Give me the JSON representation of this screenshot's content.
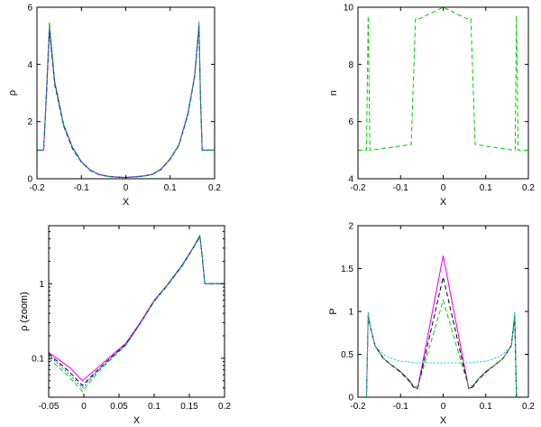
{
  "chart_data": [
    {
      "id": "rho",
      "type": "line",
      "xlabel": "X",
      "ylabel": "ρ",
      "xlim": [
        -0.2,
        0.2
      ],
      "ylim": [
        0,
        6
      ],
      "xticks": [
        -0.2,
        -0.1,
        0,
        0.1,
        0.2
      ],
      "yticks": [
        0,
        2,
        4,
        6
      ],
      "xtick_labels": [
        "-0.2",
        "-0.1",
        "0",
        "0.1",
        "0.2"
      ],
      "ytick_labels": [
        "0",
        "2",
        "4",
        "6"
      ],
      "series": [
        {
          "color": "#ff00ff",
          "dash": "solid",
          "x": [
            -0.2,
            -0.185,
            -0.178,
            -0.172,
            -0.16,
            -0.14,
            -0.12,
            -0.1,
            -0.08,
            -0.06,
            -0.04,
            -0.02,
            0,
            0.02,
            0.04,
            0.06,
            0.08,
            0.1,
            0.12,
            0.14,
            0.155,
            0.165,
            0.168,
            0.172,
            0.2
          ],
          "y": [
            1,
            1,
            3.2,
            5.3,
            3.4,
            1.9,
            1.1,
            0.6,
            0.3,
            0.15,
            0.09,
            0.06,
            0.05,
            0.07,
            0.1,
            0.16,
            0.35,
            0.7,
            1.2,
            2.3,
            3.6,
            5.4,
            3.0,
            1.0,
            1
          ]
        },
        {
          "color": "#000000",
          "dash": "dash",
          "x": [
            -0.2,
            -0.185,
            -0.178,
            -0.172,
            -0.16,
            -0.14,
            -0.12,
            -0.1,
            -0.08,
            -0.06,
            -0.04,
            -0.02,
            0,
            0.02,
            0.04,
            0.06,
            0.08,
            0.1,
            0.12,
            0.14,
            0.155,
            0.165,
            0.168,
            0.172,
            0.2
          ],
          "y": [
            1,
            1,
            3.1,
            5.2,
            3.3,
            1.85,
            1.05,
            0.58,
            0.29,
            0.14,
            0.08,
            0.055,
            0.045,
            0.065,
            0.09,
            0.15,
            0.33,
            0.68,
            1.18,
            2.25,
            3.55,
            5.3,
            2.9,
            1.0,
            1
          ]
        },
        {
          "color": "#00cc00",
          "dash": "dash",
          "x": [
            -0.2,
            -0.185,
            -0.178,
            -0.172,
            -0.16,
            -0.14,
            -0.12,
            -0.1,
            -0.08,
            -0.06,
            -0.04,
            -0.02,
            0,
            0.02,
            0.04,
            0.06,
            0.08,
            0.1,
            0.12,
            0.14,
            0.155,
            0.165,
            0.168,
            0.172,
            0.2
          ],
          "y": [
            1,
            1,
            3.3,
            5.5,
            3.4,
            1.9,
            1.1,
            0.6,
            0.3,
            0.14,
            0.08,
            0.05,
            0.04,
            0.06,
            0.09,
            0.15,
            0.34,
            0.7,
            1.2,
            2.3,
            3.6,
            5.5,
            3.0,
            1.0,
            1
          ]
        },
        {
          "color": "#0066ff",
          "dash": "dot",
          "x": [
            -0.2,
            -0.185,
            -0.178,
            -0.172,
            -0.16,
            -0.14,
            -0.12,
            -0.1,
            -0.08,
            -0.06,
            -0.04,
            -0.02,
            0,
            0.02,
            0.04,
            0.06,
            0.08,
            0.1,
            0.12,
            0.14,
            0.155,
            0.165,
            0.168,
            0.172,
            0.2
          ],
          "y": [
            1,
            1,
            3.2,
            5.3,
            3.35,
            1.88,
            1.08,
            0.59,
            0.3,
            0.145,
            0.085,
            0.055,
            0.045,
            0.065,
            0.095,
            0.155,
            0.34,
            0.69,
            1.19,
            2.28,
            3.58,
            5.35,
            2.95,
            1.0,
            1
          ]
        }
      ]
    },
    {
      "id": "n",
      "type": "line",
      "xlabel": "X",
      "ylabel": "n",
      "xlim": [
        -0.2,
        0.2
      ],
      "ylim": [
        4,
        10
      ],
      "xticks": [
        -0.2,
        -0.1,
        0,
        0.1,
        0.2
      ],
      "yticks": [
        4,
        6,
        8,
        10
      ],
      "xtick_labels": [
        "-0.2",
        "-0.1",
        "0",
        "0.1",
        "0.2"
      ],
      "ytick_labels": [
        "4",
        "6",
        "8",
        "10"
      ],
      "series": [
        {
          "color": "#00cc00",
          "dash": "dash",
          "x": [
            -0.2,
            -0.185,
            -0.18,
            -0.176,
            -0.172,
            -0.168,
            -0.075,
            -0.065,
            -0.055,
            0,
            0.055,
            0.065,
            0.075,
            0.165,
            0.169,
            0.172,
            0.176,
            0.2
          ],
          "y": [
            5,
            5,
            5,
            9.7,
            5,
            5,
            5.2,
            9.6,
            9.6,
            10,
            9.6,
            9.6,
            5.2,
            5,
            5,
            9.7,
            5,
            5
          ]
        }
      ]
    },
    {
      "id": "rho_zoom",
      "type": "line",
      "xlabel": "X",
      "ylabel": "ρ (zoom)",
      "yscale": "log",
      "xlim": [
        -0.05,
        0.2
      ],
      "ylim": [
        0.03,
        6
      ],
      "xticks": [
        -0.05,
        0,
        0.05,
        0.1,
        0.15,
        0.2
      ],
      "yticks": [
        0.1,
        1
      ],
      "xtick_labels": [
        "-0.05",
        "0",
        "0.05",
        "0.1",
        "0.15",
        "0.2"
      ],
      "ytick_labels": [
        "0.1",
        "1"
      ],
      "series": [
        {
          "color": "#ff00ff",
          "dash": "solid",
          "x": [
            -0.05,
            -0.02,
            -0.002,
            0.02,
            0.04,
            0.06,
            0.08,
            0.1,
            0.12,
            0.14,
            0.155,
            0.165,
            0.168,
            0.172,
            0.2
          ],
          "y": [
            0.12,
            0.075,
            0.05,
            0.075,
            0.11,
            0.16,
            0.3,
            0.6,
            1.0,
            1.8,
            3.0,
            4.4,
            2.5,
            1.0,
            1.0
          ]
        },
        {
          "color": "#000000",
          "dash": "dash",
          "x": [
            -0.05,
            -0.02,
            -0.002,
            0.02,
            0.04,
            0.06,
            0.08,
            0.1,
            0.12,
            0.14,
            0.155,
            0.165,
            0.168,
            0.172,
            0.2
          ],
          "y": [
            0.115,
            0.065,
            0.043,
            0.07,
            0.105,
            0.155,
            0.29,
            0.58,
            0.98,
            1.75,
            2.95,
            4.3,
            2.4,
            1.0,
            1.0
          ]
        },
        {
          "color": "#00cc00",
          "dash": "dash",
          "x": [
            -0.05,
            -0.02,
            -0.002,
            0.02,
            0.04,
            0.06,
            0.08,
            0.1,
            0.12,
            0.14,
            0.155,
            0.165,
            0.168,
            0.172,
            0.2
          ],
          "y": [
            0.1,
            0.055,
            0.036,
            0.065,
            0.1,
            0.15,
            0.29,
            0.59,
            1.0,
            1.8,
            3.0,
            4.5,
            2.5,
            1.0,
            1.0
          ]
        },
        {
          "color": "#0066ff",
          "dash": "dot",
          "x": [
            -0.05,
            -0.02,
            -0.002,
            0.02,
            0.04,
            0.06,
            0.08,
            0.1,
            0.12,
            0.14,
            0.155,
            0.165,
            0.168,
            0.172,
            0.2
          ],
          "y": [
            0.11,
            0.06,
            0.04,
            0.068,
            0.103,
            0.152,
            0.29,
            0.585,
            0.99,
            1.77,
            2.97,
            4.35,
            2.45,
            1.0,
            1.0
          ]
        }
      ]
    },
    {
      "id": "P",
      "type": "line",
      "xlabel": "X",
      "ylabel": "P",
      "xlim": [
        -0.2,
        0.2
      ],
      "ylim": [
        0,
        2
      ],
      "xticks": [
        -0.2,
        -0.1,
        0,
        0.1,
        0.2
      ],
      "yticks": [
        0,
        0.5,
        1,
        1.5,
        2
      ],
      "xtick_labels": [
        "-0.2",
        "-0.1",
        "0",
        "0.1",
        "0.2"
      ],
      "ytick_labels": [
        "0",
        "0.5",
        "1",
        "1.5",
        "2"
      ],
      "series": [
        {
          "color": "#ff00ff",
          "dash": "solid",
          "x": [
            -0.18,
            -0.176,
            -0.17,
            -0.16,
            -0.14,
            -0.12,
            -0.1,
            -0.09,
            -0.08,
            -0.07,
            -0.06,
            0,
            0.06,
            0.07,
            0.08,
            0.09,
            0.1,
            0.12,
            0.14,
            0.16,
            0.168,
            0.172
          ],
          "y": [
            0,
            0.95,
            0.8,
            0.6,
            0.45,
            0.37,
            0.3,
            0.25,
            0.2,
            0.12,
            0.1,
            1.65,
            0.1,
            0.12,
            0.2,
            0.25,
            0.3,
            0.37,
            0.45,
            0.6,
            0.95,
            0
          ]
        },
        {
          "color": "#000000",
          "dash": "dash",
          "x": [
            -0.18,
            -0.176,
            -0.17,
            -0.16,
            -0.14,
            -0.12,
            -0.1,
            -0.09,
            -0.08,
            -0.07,
            -0.06,
            0,
            0.06,
            0.07,
            0.08,
            0.09,
            0.1,
            0.12,
            0.14,
            0.16,
            0.168,
            0.172
          ],
          "y": [
            0,
            0.95,
            0.8,
            0.6,
            0.45,
            0.37,
            0.29,
            0.24,
            0.19,
            0.12,
            0.1,
            1.4,
            0.1,
            0.12,
            0.19,
            0.24,
            0.29,
            0.37,
            0.45,
            0.6,
            0.95,
            0
          ]
        },
        {
          "color": "#00cc00",
          "dash": "dash",
          "x": [
            -0.18,
            -0.176,
            -0.17,
            -0.16,
            -0.14,
            -0.12,
            -0.1,
            -0.09,
            -0.08,
            -0.07,
            -0.06,
            0,
            0.06,
            0.07,
            0.08,
            0.09,
            0.1,
            0.12,
            0.14,
            0.16,
            0.168,
            0.172
          ],
          "y": [
            0,
            0.97,
            0.8,
            0.6,
            0.45,
            0.37,
            0.3,
            0.25,
            0.2,
            0.14,
            0.11,
            1.13,
            0.11,
            0.14,
            0.2,
            0.25,
            0.3,
            0.37,
            0.45,
            0.6,
            0.97,
            0
          ]
        },
        {
          "color": "#00cccc",
          "dash": "dot",
          "x": [
            -0.18,
            -0.176,
            -0.17,
            -0.16,
            -0.14,
            -0.12,
            -0.1,
            -0.08,
            -0.06,
            -0.04,
            -0.02,
            0,
            0.02,
            0.04,
            0.06,
            0.08,
            0.1,
            0.12,
            0.14,
            0.16,
            0.168,
            0.172
          ],
          "y": [
            0,
            1.0,
            0.8,
            0.6,
            0.5,
            0.45,
            0.42,
            0.41,
            0.4,
            0.4,
            0.4,
            0.4,
            0.4,
            0.4,
            0.4,
            0.41,
            0.42,
            0.45,
            0.5,
            0.6,
            1.0,
            0
          ]
        }
      ]
    }
  ]
}
